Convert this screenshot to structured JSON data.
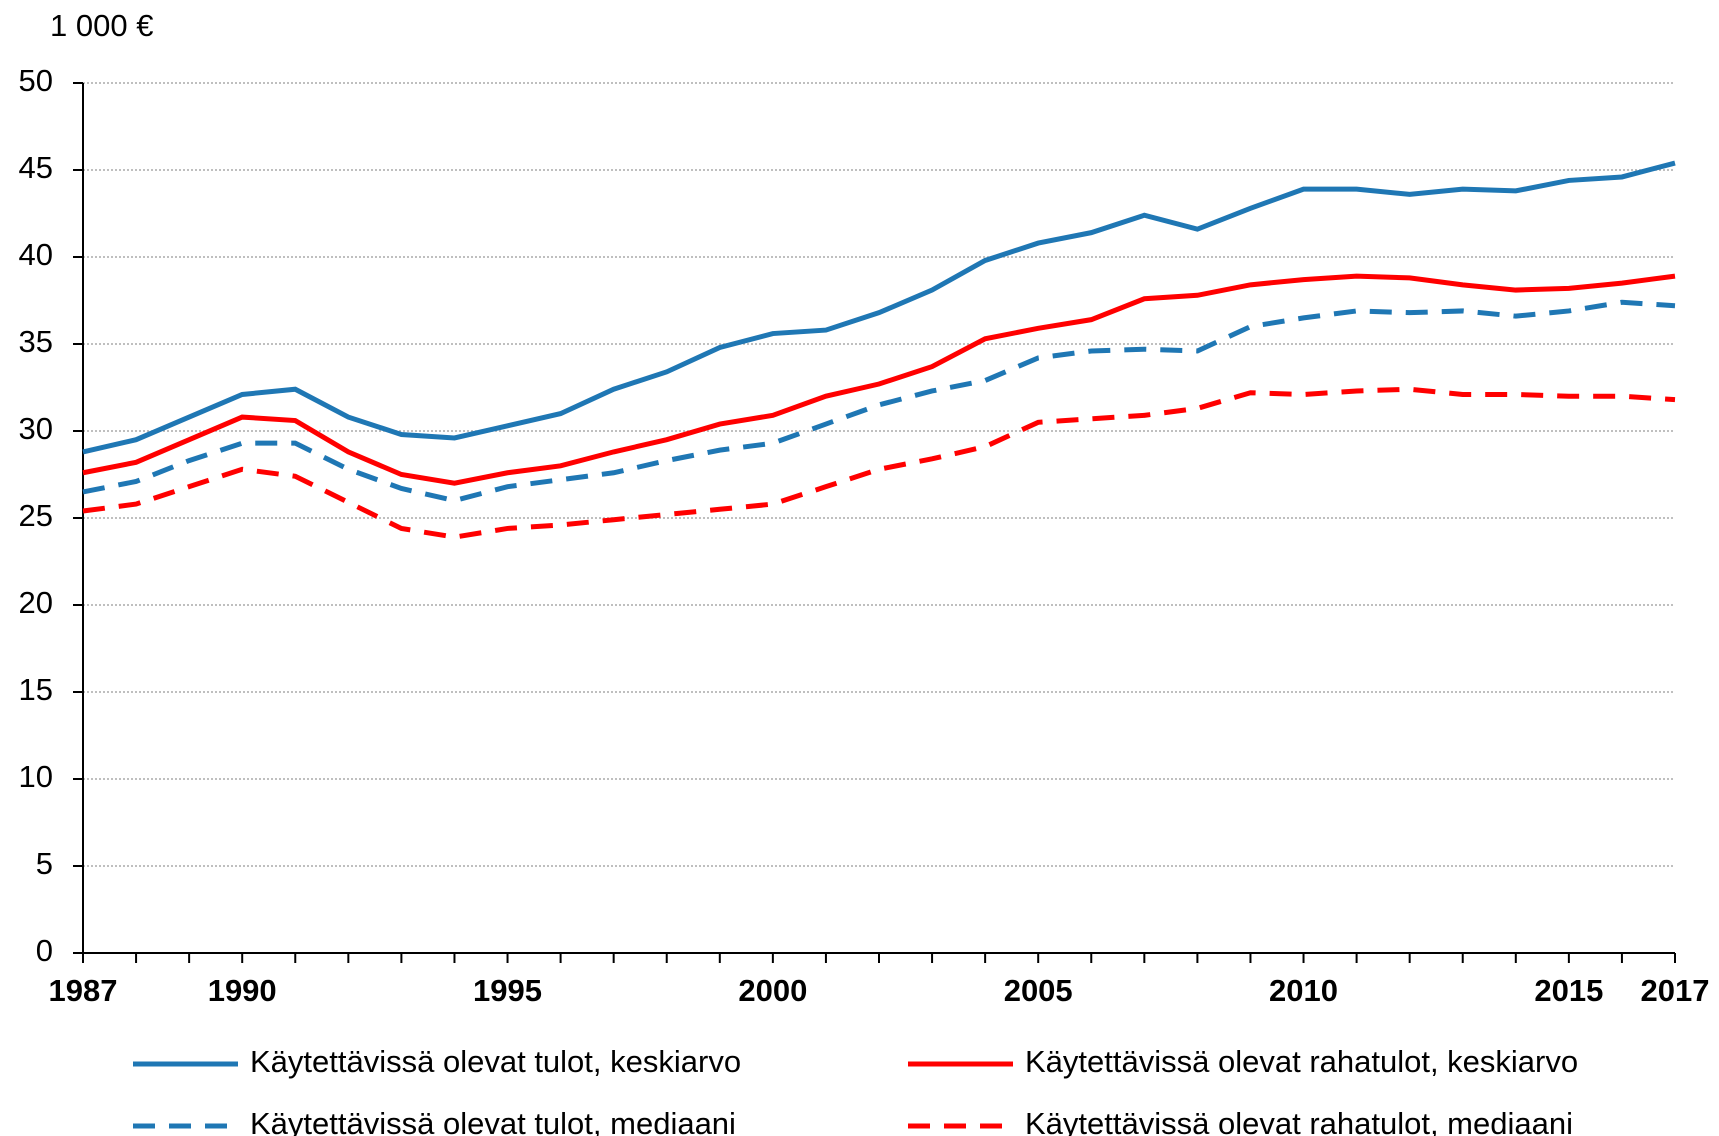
{
  "chart_data": {
    "type": "line",
    "y_label": "1 000 €",
    "x": [
      1987,
      1988,
      1989,
      1990,
      1991,
      1992,
      1993,
      1994,
      1995,
      1996,
      1997,
      1998,
      1999,
      2000,
      2001,
      2002,
      2003,
      2004,
      2005,
      2006,
      2007,
      2008,
      2009,
      2010,
      2011,
      2012,
      2013,
      2014,
      2015,
      2016,
      2017
    ],
    "xlim": [
      1987,
      2017
    ],
    "xticks": [
      1987,
      1990,
      1995,
      2000,
      2005,
      2010,
      2015,
      2017
    ],
    "ylim": [
      0,
      50
    ],
    "yticks": [
      0,
      5,
      10,
      15,
      20,
      25,
      30,
      35,
      40,
      45,
      50
    ],
    "grid": true,
    "legend": "bottom",
    "series": [
      {
        "name": "Käytettävissä olevat tulot, keskiarvo",
        "color": "#1f77b4",
        "dash": "solid",
        "values": [
          28.8,
          29.5,
          30.8,
          32.1,
          32.4,
          30.8,
          29.8,
          29.6,
          30.3,
          31.0,
          32.4,
          33.4,
          34.8,
          35.6,
          35.8,
          36.8,
          38.1,
          39.8,
          40.8,
          41.4,
          42.4,
          41.6,
          42.8,
          43.9,
          43.9,
          43.6,
          43.9,
          43.8,
          44.4,
          44.6,
          45.4
        ]
      },
      {
        "name": "Käytettävissä olevat rahatulot, keskiarvo",
        "color": "#ff0000",
        "dash": "solid",
        "values": [
          27.6,
          28.2,
          29.5,
          30.8,
          30.6,
          28.8,
          27.5,
          27.0,
          27.6,
          28.0,
          28.8,
          29.5,
          30.4,
          30.9,
          32.0,
          32.7,
          33.7,
          35.3,
          35.9,
          36.4,
          37.6,
          37.8,
          38.4,
          38.7,
          38.9,
          38.8,
          38.4,
          38.1,
          38.2,
          38.5,
          38.9
        ]
      },
      {
        "name": "Käytettävissä olevat tulot, mediaani",
        "color": "#1f77b4",
        "dash": "dashed",
        "values": [
          26.5,
          27.1,
          28.3,
          29.3,
          29.3,
          27.8,
          26.7,
          26.0,
          26.8,
          27.2,
          27.6,
          28.3,
          28.9,
          29.3,
          30.4,
          31.5,
          32.3,
          32.9,
          34.2,
          34.6,
          34.7,
          34.6,
          36.0,
          36.5,
          36.9,
          36.8,
          36.9,
          36.6,
          36.9,
          37.4,
          37.2
        ]
      },
      {
        "name": "Käytettävissä olevat rahatulot, mediaani",
        "color": "#ff0000",
        "dash": "dashed",
        "values": [
          25.4,
          25.8,
          26.8,
          27.8,
          27.4,
          25.9,
          24.4,
          23.9,
          24.4,
          24.6,
          24.9,
          25.2,
          25.5,
          25.8,
          26.8,
          27.8,
          28.4,
          29.1,
          30.5,
          30.7,
          30.9,
          31.3,
          32.2,
          32.1,
          32.3,
          32.4,
          32.1,
          32.1,
          32.0,
          32.0,
          31.8
        ]
      }
    ]
  }
}
